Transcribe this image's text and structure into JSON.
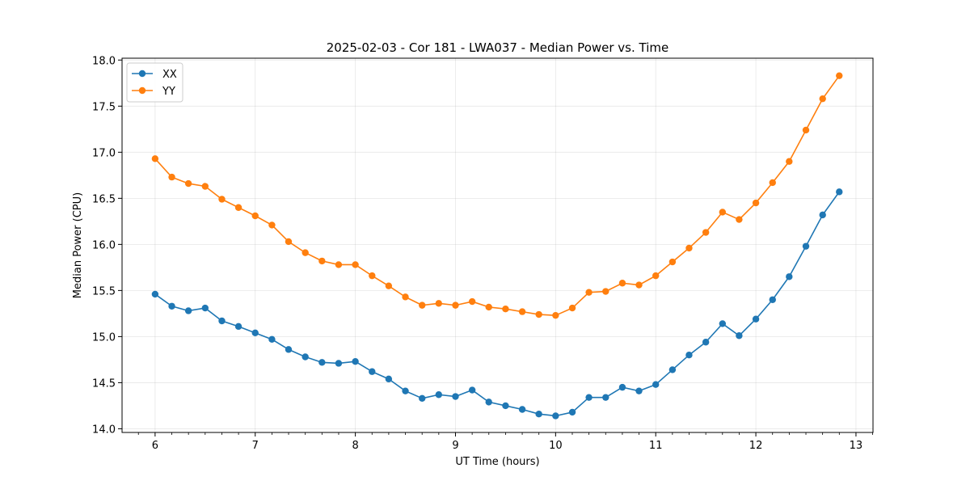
{
  "chart_data": {
    "type": "line",
    "title": "2025-02-03 - Cor 181 - LWA037 - Median Power vs. Time",
    "xlabel": "UT Time (hours)",
    "ylabel": "Median Power (CPU)",
    "xlim": [
      5.67,
      13.17
    ],
    "ylim": [
      13.96,
      18.02
    ],
    "xticks": [
      6,
      7,
      8,
      9,
      10,
      11,
      12,
      13
    ],
    "yticks": [
      14.0,
      14.5,
      15.0,
      15.5,
      16.0,
      16.5,
      17.0,
      17.5,
      18.0
    ],
    "ytick_labels": [
      "14.0",
      "14.5",
      "15.0",
      "15.5",
      "16.0",
      "16.5",
      "17.0",
      "17.5",
      "18.0"
    ],
    "grid": true,
    "legend_position": "upper-left",
    "x": [
      6.0,
      6.167,
      6.333,
      6.5,
      6.667,
      6.833,
      7.0,
      7.167,
      7.333,
      7.5,
      7.667,
      7.833,
      8.0,
      8.167,
      8.333,
      8.5,
      8.667,
      8.833,
      9.0,
      9.167,
      9.333,
      9.5,
      9.667,
      9.833,
      10.0,
      10.167,
      10.333,
      10.5,
      10.667,
      10.833,
      11.0,
      11.167,
      11.333,
      11.5,
      11.667,
      11.833,
      12.0,
      12.167,
      12.333,
      12.5,
      12.667,
      12.833
    ],
    "series": [
      {
        "name": "XX",
        "color": "#1f77b4",
        "values": [
          15.46,
          15.33,
          15.28,
          15.31,
          15.17,
          15.11,
          15.04,
          14.97,
          14.86,
          14.78,
          14.72,
          14.71,
          14.73,
          14.62,
          14.54,
          14.41,
          14.33,
          14.37,
          14.35,
          14.42,
          14.29,
          14.25,
          14.21,
          14.16,
          14.14,
          14.18,
          14.34,
          14.34,
          14.45,
          14.41,
          14.48,
          14.64,
          14.8,
          14.94,
          15.14,
          15.01,
          15.19,
          15.4,
          15.65,
          15.98,
          16.32,
          16.57
        ]
      },
      {
        "name": "YY",
        "color": "#ff7f0e",
        "values": [
          16.93,
          16.73,
          16.66,
          16.63,
          16.49,
          16.4,
          16.31,
          16.21,
          16.03,
          15.91,
          15.82,
          15.78,
          15.78,
          15.66,
          15.55,
          15.43,
          15.34,
          15.36,
          15.34,
          15.38,
          15.32,
          15.3,
          15.27,
          15.24,
          15.23,
          15.31,
          15.48,
          15.49,
          15.58,
          15.56,
          15.66,
          15.81,
          15.96,
          16.13,
          16.35,
          16.27,
          16.45,
          16.67,
          16.9,
          17.24,
          17.58,
          17.83
        ]
      }
    ]
  }
}
